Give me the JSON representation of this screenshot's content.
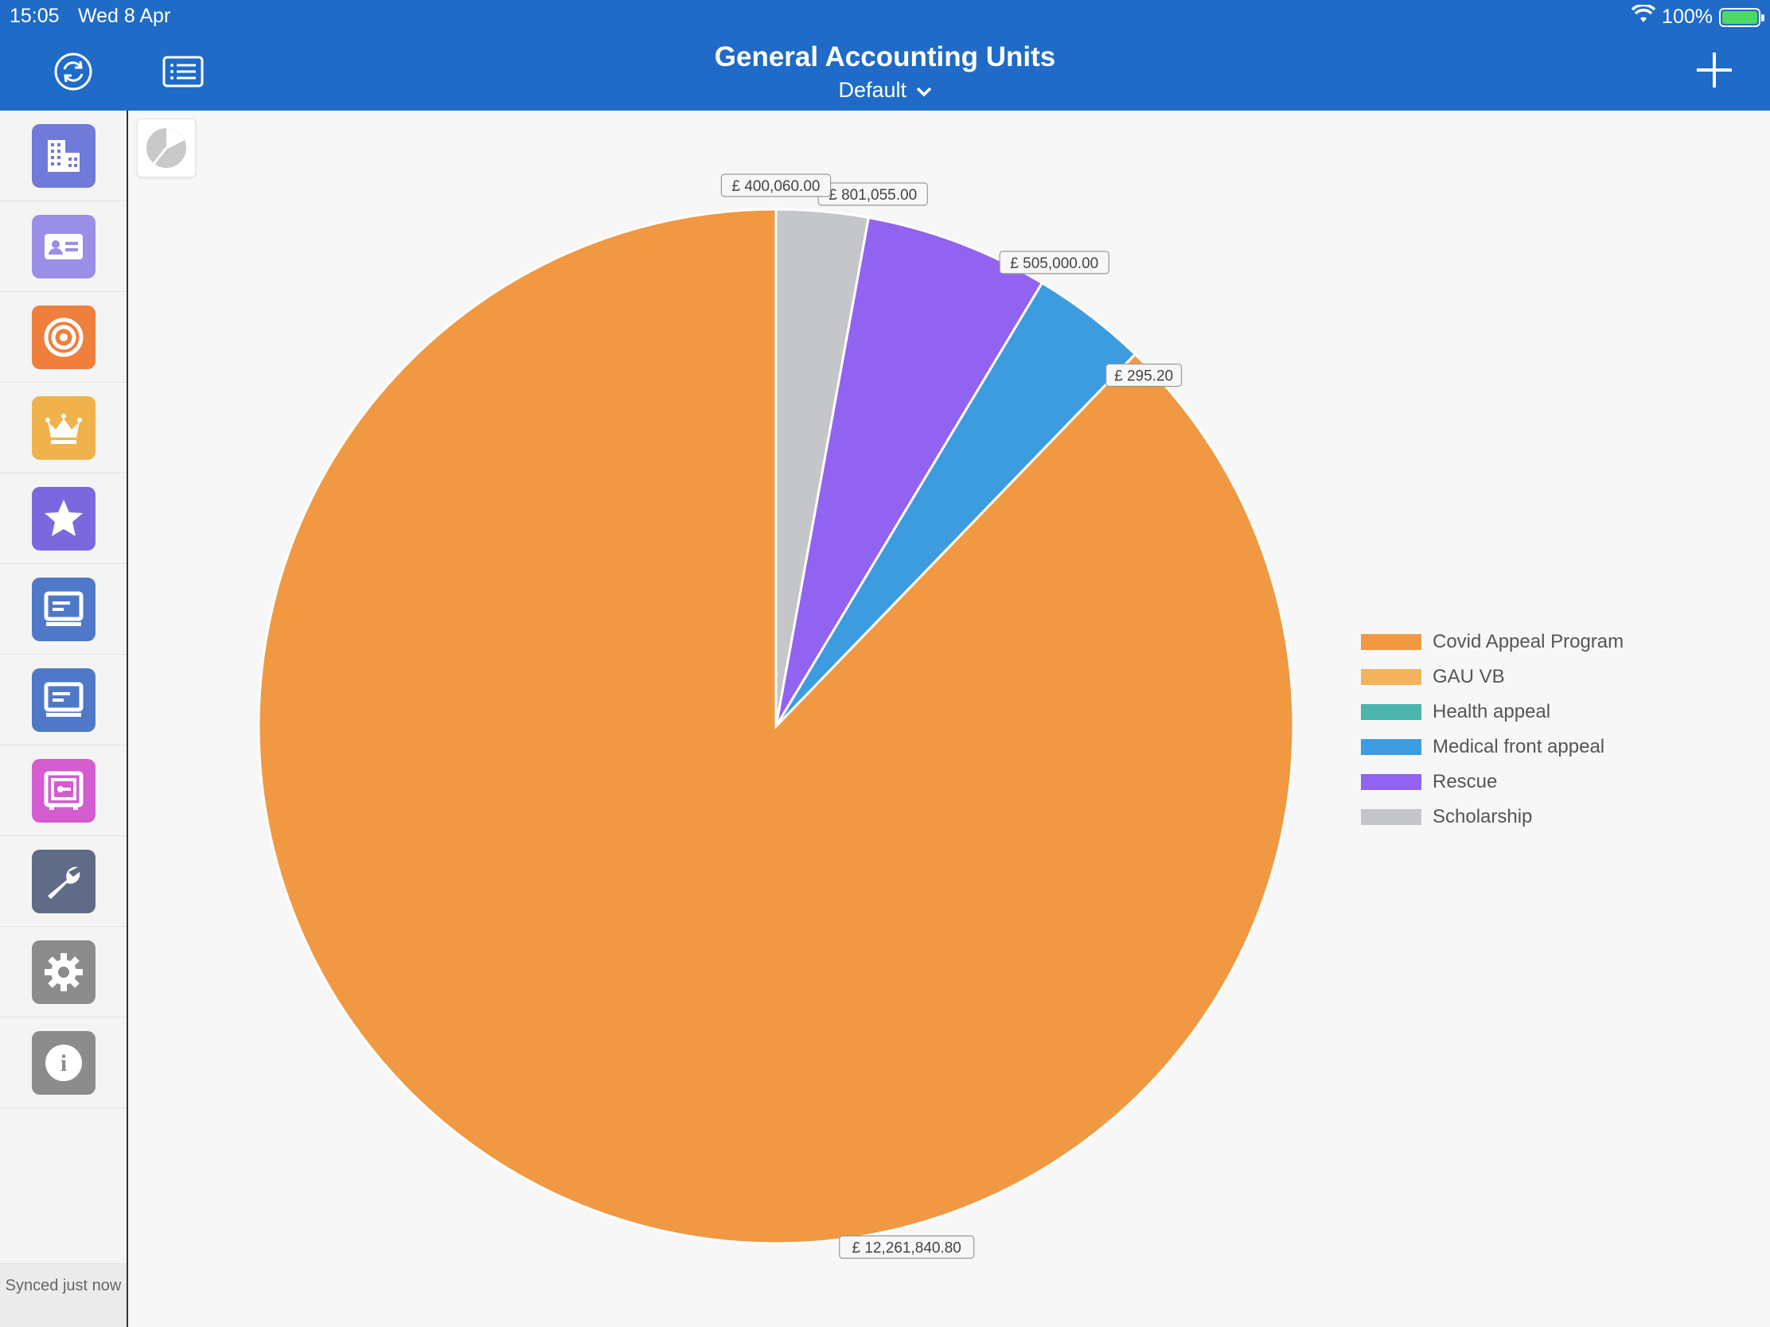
{
  "status_bar": {
    "time": "15:05",
    "date": "Wed 8 Apr",
    "battery": "100%",
    "battery_level": 1.0
  },
  "header": {
    "title": "General Accounting Units",
    "subtitle": "Default"
  },
  "sidebar": {
    "items": [
      {
        "icon": "building-icon",
        "color": "#6f7ad9"
      },
      {
        "icon": "contact-card-icon",
        "color": "#9a8ee6"
      },
      {
        "icon": "target-icon",
        "color": "#ee7f3c"
      },
      {
        "icon": "crown-icon",
        "color": "#f0b24c"
      },
      {
        "icon": "star-icon",
        "color": "#7b68dd"
      },
      {
        "icon": "presentation-icon",
        "color": "#4f79c8"
      },
      {
        "icon": "presentation-icon",
        "color": "#4f79c8"
      },
      {
        "icon": "safe-icon",
        "color": "#d35ccf"
      },
      {
        "icon": "wrench-icon",
        "color": "#5f6b87"
      },
      {
        "icon": "gear-icon",
        "color": "#8c8c8c"
      },
      {
        "icon": "info-icon",
        "color": "#8c8c8c"
      }
    ],
    "sync_status": "Synced just now"
  },
  "chart_data": {
    "type": "pie",
    "currency": "£",
    "slices": [
      {
        "name": "Covid Appeal Program",
        "value": 12261840.8,
        "label": "£ 12,261,840.80",
        "color": "#f09842"
      },
      {
        "name": "GAU VB",
        "value": 295.2,
        "label": "£ 295.20",
        "color": "#f2b35c"
      },
      {
        "name": "Health appeal",
        "value": 0,
        "label": "",
        "color": "#4ab5ad"
      },
      {
        "name": "Medical front appeal",
        "value": 505000.0,
        "label": "£ 505,000.00",
        "color": "#3d9be0"
      },
      {
        "name": "Rescue",
        "value": 801055.0,
        "label": "£ 801,055.00",
        "color": "#9163f0"
      },
      {
        "name": "Scholarship",
        "value": 400060.0,
        "label": "£ 400,060.00",
        "color": "#c5c6ca"
      }
    ],
    "legend_position": "right"
  }
}
